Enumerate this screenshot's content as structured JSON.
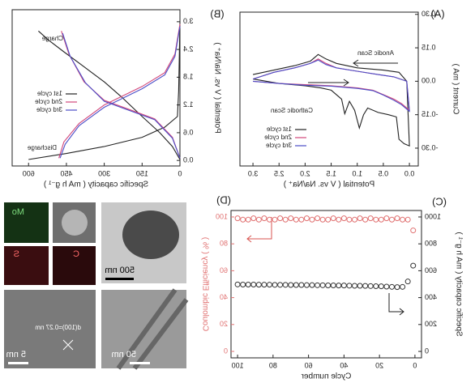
{
  "chart_data": [
    {
      "type": "line",
      "panel_labels": [
        "(A)"
      ],
      "x_label": "Potential ( V vs. Na/Na⁺ )",
      "y_label": "Current ( mA )",
      "xlim": [
        -0.17,
        3.25
      ],
      "ylim": [
        -0.38,
        0.31
      ],
      "xticks": [
        {
          "value": 0,
          "label": "0.0"
        },
        0.5,
        {
          "value": 1,
          "label": "1.0"
        },
        1.5,
        {
          "value": 2,
          "label": "2.0"
        },
        2.5,
        {
          "value": 3,
          "label": "3.0"
        }
      ],
      "yticks": [
        {
          "value": -0.3,
          "label": "-0.30"
        },
        {
          "value": -0.15,
          "label": "-0.15"
        },
        {
          "value": 0,
          "label": "0.00"
        },
        {
          "value": 0.15,
          "label": "0.15"
        },
        {
          "value": 0.3,
          "label": "0.30"
        }
      ],
      "legend": "lower right",
      "annotations": [
        "Anodic Scan",
        "Cathodic Scan"
      ],
      "series": [
        {
          "name": "1st cycle",
          "color": "#222222",
          "x": [
            3.0,
            2.5,
            2.0,
            1.7,
            1.5,
            1.3,
            1.24,
            1.15,
            1.05,
            0.96,
            0.88,
            0.8,
            0.6,
            0.4,
            0.25,
            0.2,
            0.1,
            0.0,
            0.05,
            0.2,
            0.5,
            1.0,
            1.4,
            1.6,
            1.75,
            1.9,
            2.2,
            2.6,
            3.0
          ],
          "values": [
            0.01,
            -0.01,
            -0.02,
            -0.03,
            -0.04,
            -0.08,
            -0.146,
            -0.09,
            -0.13,
            -0.21,
            -0.15,
            -0.12,
            -0.14,
            -0.15,
            -0.16,
            -0.26,
            -0.28,
            -0.29,
            0.0,
            0.04,
            0.05,
            0.06,
            0.08,
            0.1,
            0.12,
            0.09,
            0.07,
            0.05,
            0.03
          ]
        },
        {
          "name": "2nd cycle",
          "color": "#d2477a",
          "x": [
            3.0,
            2.5,
            2.0,
            1.5,
            1.0,
            0.7,
            0.5,
            0.3,
            0.15,
            0.05,
            0.0,
            0.05,
            0.3,
            0.6,
            1.0,
            1.4,
            1.6,
            1.75,
            1.9,
            2.2,
            2.6,
            3.0
          ],
          "values": [
            0.0,
            -0.01,
            -0.015,
            -0.02,
            -0.03,
            -0.04,
            -0.06,
            -0.08,
            -0.1,
            -0.12,
            -0.13,
            0.0,
            0.02,
            0.03,
            0.045,
            0.06,
            0.08,
            0.1,
            0.08,
            0.06,
            0.04,
            0.01
          ]
        },
        {
          "name": "3rd cycle",
          "color": "#4b4ec8",
          "x": [
            3.0,
            2.5,
            2.0,
            1.5,
            1.0,
            0.7,
            0.5,
            0.3,
            0.15,
            0.05,
            0.0,
            0.05,
            0.3,
            0.6,
            1.0,
            1.4,
            1.6,
            1.75,
            1.9,
            2.2,
            2.6,
            3.0
          ],
          "values": [
            0.0,
            -0.01,
            -0.018,
            -0.022,
            -0.032,
            -0.042,
            -0.062,
            -0.085,
            -0.105,
            -0.125,
            -0.135,
            0.0,
            0.02,
            0.03,
            0.045,
            0.06,
            0.075,
            0.095,
            0.08,
            0.06,
            0.04,
            0.01
          ]
        }
      ]
    },
    {
      "type": "line",
      "panel_labels": [
        "(B)"
      ],
      "x_label": "Specific capacity ( mA h g⁻¹ )",
      "y_label": "Potential ( V vs. Na/Na⁺ )",
      "xlim": [
        0,
        665
      ],
      "ylim": [
        -0.12,
        3.26
      ],
      "xticks": [
        0,
        150,
        300,
        450,
        600
      ],
      "yticks": [
        {
          "value": 0,
          "label": "0.0"
        },
        0.6,
        1.2,
        1.8,
        2.4,
        {
          "value": 3,
          "label": "3.0"
        }
      ],
      "legend": "center right",
      "annotations": [
        "Charge",
        "Discharge"
      ],
      "series": [
        {
          "name": "1st cycle",
          "color": "#222222",
          "x": [
            0,
            5,
            10,
            60,
            150,
            300,
            450,
            600,
            null,
            0,
            30,
            80,
            150,
            231,
            300,
            391,
            460,
            520,
            561
          ],
          "values": [
            3.0,
            1.5,
            0.95,
            0.72,
            0.5,
            0.3,
            0.15,
            0.02,
            null,
            0.02,
            0.3,
            0.6,
            0.95,
            1.37,
            1.7,
            2.07,
            2.35,
            2.6,
            2.8
          ]
        },
        {
          "name": "2nd cycle",
          "color": "#d2477a",
          "x": [
            0,
            20,
            60,
            150,
            300,
            400,
            460,
            480,
            null,
            0,
            30,
            100,
            200,
            300,
            380,
            440,
            470
          ],
          "values": [
            2.95,
            2.3,
            1.9,
            1.6,
            1.2,
            0.8,
            0.4,
            0.05,
            null,
            0.05,
            0.5,
            0.9,
            1.1,
            1.3,
            1.7,
            2.3,
            2.8
          ]
        },
        {
          "name": "3rd cycle",
          "color": "#4b4ec8",
          "x": [
            0,
            20,
            60,
            150,
            300,
            400,
            455,
            475,
            null,
            0,
            30,
            100,
            200,
            300,
            375,
            435,
            465
          ],
          "values": [
            2.9,
            2.25,
            1.85,
            1.55,
            1.15,
            0.75,
            0.35,
            0.05,
            null,
            0.05,
            0.48,
            0.88,
            1.08,
            1.28,
            1.68,
            2.25,
            2.75
          ]
        }
      ]
    },
    {
      "type": "scatter",
      "panel_labels": [
        "(C)",
        "(D)"
      ],
      "x_label": "Cycle number",
      "y_label": "Specific capacity ( mA h g⁻¹ )",
      "y2_label": "Coulombic Efficiency ( % )",
      "xlim": [
        -3.7,
        103.7
      ],
      "ylim": [
        -48,
        1048
      ],
      "y2lim": [
        -4.8,
        104.8
      ],
      "xticks": [
        0,
        20,
        40,
        60,
        80,
        100
      ],
      "yticks": [
        0,
        200,
        400,
        600,
        800,
        1000
      ],
      "y2ticks": [
        0,
        20,
        40,
        60,
        80,
        100
      ],
      "series": [
        {
          "color": "#333333",
          "x": [
            1,
            4,
            7,
            10,
            13,
            16,
            19,
            22,
            25,
            28,
            31,
            34,
            37,
            40,
            43,
            46,
            49,
            52,
            55,
            58,
            61,
            64,
            67,
            70,
            73,
            76,
            79,
            82,
            85,
            88,
            91,
            94,
            97,
            100
          ],
          "values": [
            638,
            520,
            480,
            478,
            480,
            482,
            484,
            485,
            486,
            487,
            488,
            488,
            489,
            490,
            490,
            491,
            491,
            492,
            492,
            493,
            493,
            494,
            494,
            494,
            495,
            495,
            495,
            496,
            496,
            496,
            497,
            497,
            497,
            498
          ]
        },
        {
          "color": "#e07070",
          "axis": "y2",
          "x": [
            1,
            4,
            7,
            10,
            13,
            16,
            19,
            22,
            25,
            28,
            31,
            34,
            37,
            40,
            43,
            46,
            49,
            52,
            55,
            58,
            61,
            64,
            67,
            70,
            73,
            76,
            79,
            82,
            85,
            88,
            91,
            94,
            97,
            100
          ],
          "values": [
            90,
            98,
            98,
            99,
            98,
            99,
            98,
            98,
            99,
            98,
            99,
            98,
            98,
            99,
            98,
            99,
            98,
            98,
            99,
            98,
            99,
            98,
            98,
            99,
            98,
            99,
            98,
            98,
            99,
            98,
            99,
            98,
            98,
            99
          ]
        }
      ]
    }
  ],
  "images": {
    "eds_labels": [
      "Mo",
      "S",
      "C"
    ],
    "scale_bars": [
      "500 nm",
      "50 nm",
      "5 nm"
    ],
    "lattice": "d(100)=0.27 nm"
  }
}
